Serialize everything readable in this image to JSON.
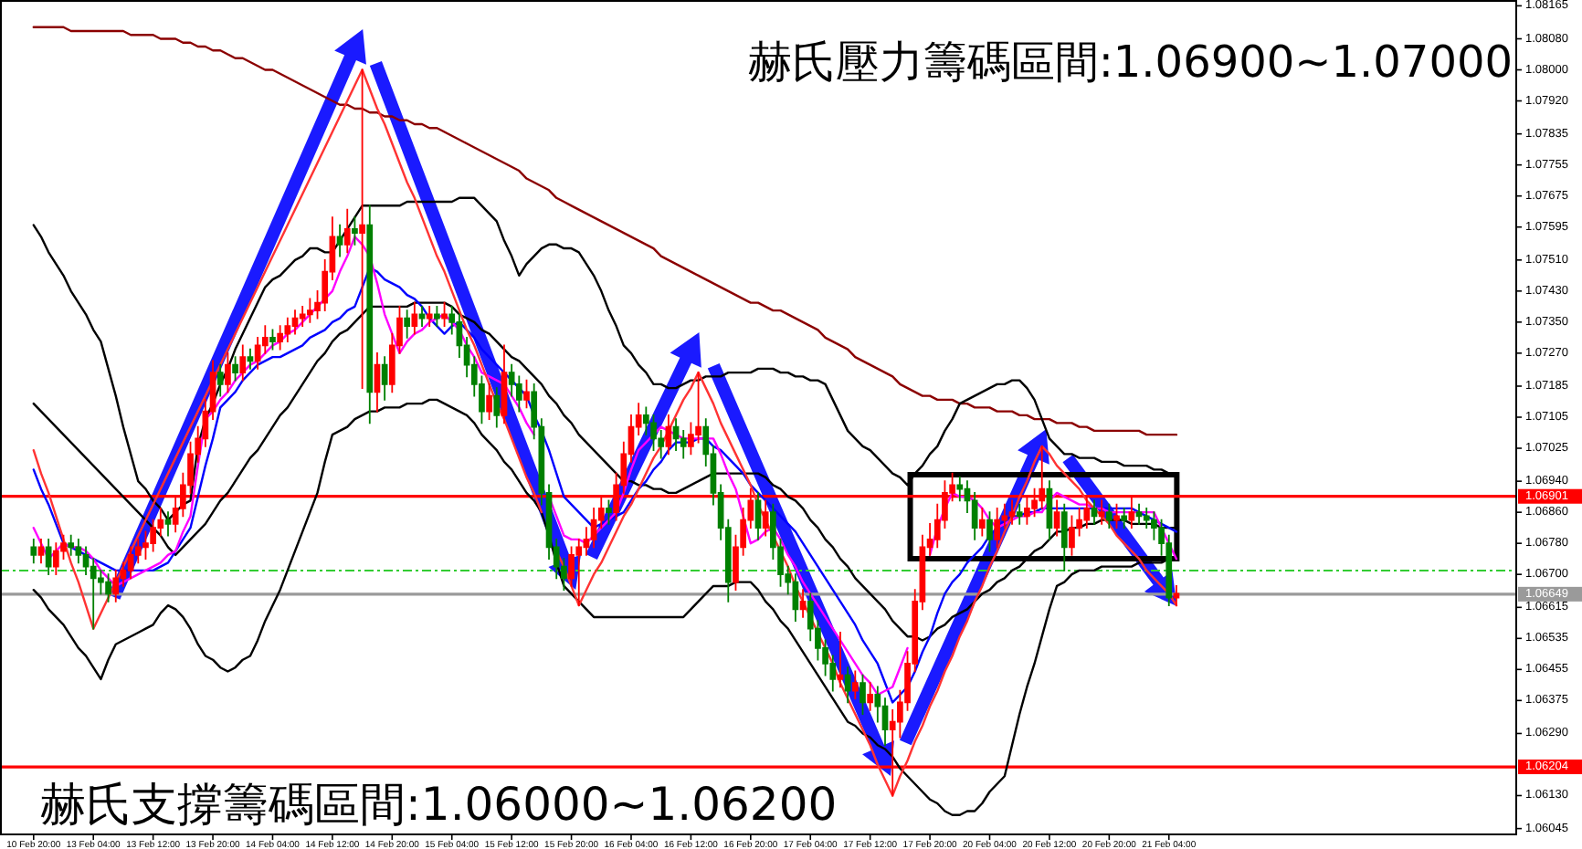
{
  "chart_data": {
    "type": "candlestick",
    "categories": [
      "10 Feb 20:00",
      null,
      null,
      null,
      null,
      null,
      null,
      null,
      "13 Feb 04:00",
      null,
      null,
      null,
      null,
      null,
      null,
      null,
      "13 Feb 12:00",
      null,
      null,
      null,
      null,
      null,
      null,
      null,
      "13 Feb 20:00",
      null,
      null,
      null,
      null,
      null,
      null,
      null,
      "14 Feb 04:00",
      null,
      null,
      null,
      null,
      null,
      null,
      null,
      "14 Feb 12:00",
      null,
      null,
      null,
      null,
      null,
      null,
      null,
      "14 Feb 20:00",
      null,
      null,
      null,
      null,
      null,
      null,
      null,
      "15 Feb 04:00",
      null,
      null,
      null,
      null,
      null,
      null,
      null,
      "15 Feb 12:00",
      null,
      null,
      null,
      null,
      null,
      null,
      null,
      "15 Feb 20:00",
      null,
      null,
      null,
      null,
      null,
      null,
      null,
      "16 Feb 04:00",
      null,
      null,
      null,
      null,
      null,
      null,
      null,
      "16 Feb 12:00",
      null,
      null,
      null,
      null,
      null,
      null,
      null,
      "16 Feb 20:00",
      null,
      null,
      null,
      null,
      null,
      null,
      null,
      "17 Feb 04:00",
      null,
      null,
      null,
      null,
      null,
      null,
      null,
      "17 Feb 12:00",
      null,
      null,
      null,
      null,
      null,
      null,
      null,
      "17 Feb 20:00",
      null,
      null,
      null,
      null,
      null,
      null,
      null,
      "20 Feb 04:00",
      null,
      null,
      null,
      null,
      null,
      null,
      null,
      "20 Feb 12:00",
      null,
      null,
      null,
      null,
      null,
      null,
      null,
      "20 Feb 20:00",
      null,
      null,
      null,
      null,
      null,
      null,
      null,
      "21 Feb 04:00",
      null
    ],
    "ylim": [
      1.0603,
      1.0818
    ],
    "yticks": [
      1.06045,
      {
        "value": 1.0613,
        "label": "1.06130"
      },
      {
        "value": 1.0629,
        "label": "1.06290"
      },
      1.06375,
      1.06455,
      1.06535,
      1.06615,
      {
        "value": 1.067,
        "label": "1.06700"
      },
      {
        "value": 1.0678,
        "label": "1.06780"
      },
      {
        "value": 1.0686,
        "label": "1.06860"
      },
      {
        "value": 1.0694,
        "label": "1.06940"
      },
      1.07025,
      1.07105,
      1.07185,
      {
        "value": 1.0727,
        "label": "1.07270"
      },
      {
        "value": 1.0735,
        "label": "1.07350"
      },
      {
        "value": 1.0743,
        "label": "1.07430"
      },
      {
        "value": 1.0751,
        "label": "1.07510"
      },
      1.07595,
      1.07675,
      1.07755,
      1.07835,
      {
        "value": 1.0792,
        "label": "1.07920"
      },
      {
        "value": 1.08,
        "label": "1.08000"
      },
      {
        "value": 1.0808,
        "label": "1.08080"
      },
      1.08165
    ],
    "ohlc": [
      [
        1.0677,
        1.0679,
        1.0673,
        1.0675
      ],
      [
        1.0675,
        1.0679,
        1.0673,
        1.0677
      ],
      [
        1.0677,
        1.0679,
        1.067,
        1.0672
      ],
      [
        1.0672,
        1.0678,
        1.067,
        1.0676
      ],
      [
        1.0676,
        1.068,
        1.0674,
        1.0678
      ],
      [
        1.0678,
        1.068,
        1.0675,
        1.0677
      ],
      [
        1.0677,
        1.0679,
        1.0673,
        1.0675
      ],
      [
        1.0675,
        1.0677,
        1.067,
        1.0672
      ],
      [
        1.0672,
        1.0674,
        1.0656,
        1.0669
      ],
      [
        1.0669,
        1.0671,
        1.0665,
        1.0668
      ],
      [
        1.0668,
        1.067,
        1.0663,
        1.0665
      ],
      [
        1.0665,
        1.0671,
        1.0663,
        1.0669
      ],
      [
        1.0669,
        1.0673,
        1.0667,
        1.0671
      ],
      [
        1.0671,
        1.0677,
        1.0669,
        1.0675
      ],
      [
        1.0675,
        1.0679,
        1.0673,
        1.0677
      ],
      [
        1.0677,
        1.0681,
        1.0674,
        1.0678
      ],
      [
        1.0678,
        1.0684,
        1.0676,
        1.0682
      ],
      [
        1.0682,
        1.0687,
        1.068,
        1.0684
      ],
      [
        1.0684,
        1.0686,
        1.068,
        1.0683
      ],
      [
        1.0683,
        1.069,
        1.0681,
        1.0687
      ],
      [
        1.0687,
        1.0696,
        1.0685,
        1.0693
      ],
      [
        1.0693,
        1.0704,
        1.0691,
        1.0701
      ],
      [
        1.0701,
        1.0708,
        1.0699,
        1.0705
      ],
      [
        1.0705,
        1.0715,
        1.0703,
        1.0712
      ],
      [
        1.0712,
        1.0725,
        1.071,
        1.0722
      ],
      [
        1.0722,
        1.0724,
        1.0716,
        1.0719
      ],
      [
        1.0719,
        1.0727,
        1.0717,
        1.0724
      ],
      [
        1.0724,
        1.0726,
        1.072,
        1.0722
      ],
      [
        1.0722,
        1.0729,
        1.072,
        1.0726
      ],
      [
        1.0726,
        1.0728,
        1.0723,
        1.0725
      ],
      [
        1.0725,
        1.0731,
        1.0723,
        1.0729
      ],
      [
        1.0729,
        1.0734,
        1.0727,
        1.0731
      ],
      [
        1.0731,
        1.0733,
        1.0728,
        1.073
      ],
      [
        1.073,
        1.0734,
        1.0728,
        1.0732
      ],
      [
        1.0732,
        1.0736,
        1.073,
        1.0734
      ],
      [
        1.0734,
        1.0738,
        1.0732,
        1.0736
      ],
      [
        1.0736,
        1.0739,
        1.0734,
        1.0737
      ],
      [
        1.0737,
        1.0741,
        1.0735,
        1.0738
      ],
      [
        1.0738,
        1.0743,
        1.0736,
        1.074
      ],
      [
        1.074,
        1.0751,
        1.0738,
        1.0748
      ],
      [
        1.0748,
        1.0762,
        1.0746,
        1.0757
      ],
      [
        1.0757,
        1.076,
        1.0752,
        1.0755
      ],
      [
        1.0755,
        1.0764,
        1.0753,
        1.0759
      ],
      [
        1.0759,
        1.0762,
        1.0755,
        1.0758
      ],
      [
        1.0758,
        1.08,
        1.0718,
        1.076
      ],
      [
        1.076,
        1.0765,
        1.0709,
        1.0717
      ],
      [
        1.0717,
        1.0727,
        1.0712,
        1.0724
      ],
      [
        1.0724,
        1.0726,
        1.0715,
        1.0719
      ],
      [
        1.0719,
        1.0732,
        1.0717,
        1.0729
      ],
      [
        1.0729,
        1.0739,
        1.0727,
        1.0736
      ],
      [
        1.0736,
        1.0738,
        1.0731,
        1.0734
      ],
      [
        1.0734,
        1.074,
        1.0732,
        1.0737
      ],
      [
        1.0737,
        1.0739,
        1.0734,
        1.0736
      ],
      [
        1.0736,
        1.0739,
        1.0734,
        1.0737
      ],
      [
        1.0737,
        1.0739,
        1.0734,
        1.0736
      ],
      [
        1.0736,
        1.074,
        1.0734,
        1.0737
      ],
      [
        1.0737,
        1.0739,
        1.0732,
        1.0735
      ],
      [
        1.0735,
        1.0737,
        1.0726,
        1.0729
      ],
      [
        1.0729,
        1.0731,
        1.0721,
        1.0724
      ],
      [
        1.0724,
        1.0726,
        1.0716,
        1.0719
      ],
      [
        1.0719,
        1.0721,
        1.0709,
        1.0712
      ],
      [
        1.0712,
        1.0719,
        1.071,
        1.0716
      ],
      [
        1.0716,
        1.0718,
        1.0708,
        1.0711
      ],
      [
        1.0711,
        1.0729,
        1.0709,
        1.0722
      ],
      [
        1.0722,
        1.0724,
        1.0716,
        1.0719
      ],
      [
        1.0719,
        1.0721,
        1.0712,
        1.0715
      ],
      [
        1.0715,
        1.072,
        1.0713,
        1.0717
      ],
      [
        1.0717,
        1.0719,
        1.0705,
        1.0708
      ],
      [
        1.0708,
        1.071,
        1.0688,
        1.0691
      ],
      [
        1.0691,
        1.0693,
        1.0674,
        1.0677
      ],
      [
        1.0677,
        1.0679,
        1.0669,
        1.0672
      ],
      [
        1.0672,
        1.0674,
        1.0666,
        1.0669
      ],
      [
        1.0669,
        1.0677,
        1.0667,
        1.0675
      ],
      [
        1.0675,
        1.0679,
        1.0662,
        1.0677
      ],
      [
        1.0677,
        1.0682,
        1.0675,
        1.0679
      ],
      [
        1.0679,
        1.0687,
        1.0677,
        1.0684
      ],
      [
        1.0684,
        1.069,
        1.0682,
        1.0687
      ],
      [
        1.0687,
        1.0689,
        1.0683,
        1.0686
      ],
      [
        1.0686,
        1.0696,
        1.0684,
        1.0693
      ],
      [
        1.0693,
        1.0704,
        1.0691,
        1.0701
      ],
      [
        1.0701,
        1.0711,
        1.0699,
        1.0708
      ],
      [
        1.0708,
        1.0714,
        1.0706,
        1.0711
      ],
      [
        1.0711,
        1.0713,
        1.0706,
        1.0709
      ],
      [
        1.0709,
        1.0711,
        1.0702,
        1.0705
      ],
      [
        1.0705,
        1.0707,
        1.07,
        1.0703
      ],
      [
        1.0703,
        1.0711,
        1.0701,
        1.0708
      ],
      [
        1.0708,
        1.071,
        1.0702,
        1.0705
      ],
      [
        1.0705,
        1.0707,
        1.07,
        1.0703
      ],
      [
        1.0703,
        1.0709,
        1.0701,
        1.0706
      ],
      [
        1.0706,
        1.0722,
        1.0704,
        1.0708
      ],
      [
        1.0708,
        1.071,
        1.0698,
        1.0701
      ],
      [
        1.0701,
        1.0703,
        1.0688,
        1.0691
      ],
      [
        1.0691,
        1.0693,
        1.0679,
        1.0682
      ],
      [
        1.0682,
        1.0684,
        1.0663,
        1.0668
      ],
      [
        1.0668,
        1.068,
        1.0666,
        1.0677
      ],
      [
        1.0677,
        1.0687,
        1.0675,
        1.0684
      ],
      [
        1.0684,
        1.0692,
        1.0682,
        1.0689
      ],
      [
        1.0689,
        1.0691,
        1.0679,
        1.0682
      ],
      [
        1.0682,
        1.0689,
        1.068,
        1.0686
      ],
      [
        1.0686,
        1.0688,
        1.0674,
        1.0677
      ],
      [
        1.0677,
        1.0679,
        1.0667,
        1.067
      ],
      [
        1.067,
        1.0672,
        1.0665,
        1.0668
      ],
      [
        1.0668,
        1.067,
        1.0658,
        1.0661
      ],
      [
        1.0661,
        1.0666,
        1.0659,
        1.0663
      ],
      [
        1.0663,
        1.0665,
        1.0653,
        1.0656
      ],
      [
        1.0656,
        1.0658,
        1.0648,
        1.0651
      ],
      [
        1.0651,
        1.0653,
        1.0644,
        1.0647
      ],
      [
        1.0647,
        1.0649,
        1.064,
        1.0643
      ],
      [
        1.0643,
        1.0655,
        1.0641,
        1.0644
      ],
      [
        1.0644,
        1.0646,
        1.0637,
        1.064
      ],
      [
        1.064,
        1.0645,
        1.0638,
        1.0642
      ],
      [
        1.0642,
        1.0644,
        1.0634,
        1.0637
      ],
      [
        1.0637,
        1.0642,
        1.0635,
        1.0639
      ],
      [
        1.0639,
        1.0641,
        1.0632,
        1.0636
      ],
      [
        1.0636,
        1.0638,
        1.0626,
        1.063
      ],
      [
        1.063,
        1.0635,
        1.0613,
        1.0632
      ],
      [
        1.0632,
        1.064,
        1.0628,
        1.0637
      ],
      [
        1.0637,
        1.065,
        1.0635,
        1.0647
      ],
      [
        1.0647,
        1.0666,
        1.0645,
        1.0663
      ],
      [
        1.0663,
        1.068,
        1.0661,
        1.0677
      ],
      [
        1.0677,
        1.0683,
        1.0675,
        1.0679
      ],
      [
        1.0679,
        1.0688,
        1.0677,
        1.0684
      ],
      [
        1.0684,
        1.0694,
        1.0682,
        1.0691
      ],
      [
        1.0691,
        1.0696,
        1.0689,
        1.0693
      ],
      [
        1.0693,
        1.0695,
        1.0689,
        1.0692
      ],
      [
        1.0692,
        1.0694,
        1.0686,
        1.0689
      ],
      [
        1.0689,
        1.0691,
        1.0679,
        1.0682
      ],
      [
        1.0682,
        1.0687,
        1.068,
        1.0684
      ],
      [
        1.0684,
        1.0686,
        1.0676,
        1.0679
      ],
      [
        1.0679,
        1.0687,
        1.0677,
        1.0684
      ],
      [
        1.0684,
        1.0688,
        1.0682,
        1.0685
      ],
      [
        1.0685,
        1.0689,
        1.0683,
        1.0686
      ],
      [
        1.0686,
        1.0688,
        1.0683,
        1.0685
      ],
      [
        1.0685,
        1.069,
        1.0683,
        1.0687
      ],
      [
        1.0687,
        1.0692,
        1.0685,
        1.0689
      ],
      [
        1.0689,
        1.0703,
        1.0687,
        1.0692
      ],
      [
        1.0692,
        1.0694,
        1.0679,
        1.0682
      ],
      [
        1.0682,
        1.0689,
        1.068,
        1.0686
      ],
      [
        1.0686,
        1.0688,
        1.0671,
        1.0677
      ],
      [
        1.0677,
        1.0685,
        1.0675,
        1.0682
      ],
      [
        1.0682,
        1.0687,
        1.068,
        1.0684
      ],
      [
        1.0684,
        1.069,
        1.0682,
        1.0687
      ],
      [
        1.0687,
        1.0689,
        1.0683,
        1.0685
      ],
      [
        1.0685,
        1.0689,
        1.0683,
        1.0686
      ],
      [
        1.0686,
        1.0688,
        1.0682,
        1.0684
      ],
      [
        1.0684,
        1.0688,
        1.0682,
        1.0685
      ],
      [
        1.0685,
        1.0687,
        1.0682,
        1.0684
      ],
      [
        1.0684,
        1.069,
        1.0682,
        1.0686
      ],
      [
        1.0686,
        1.0688,
        1.0683,
        1.0685
      ],
      [
        1.0685,
        1.0687,
        1.0682,
        1.0684
      ],
      [
        1.0684,
        1.0686,
        1.0679,
        1.0682
      ],
      [
        1.0682,
        1.0684,
        1.0675,
        1.0678
      ],
      [
        1.0678,
        1.068,
        1.0662,
        1.0664
      ],
      [
        1.0664,
        1.0667,
        1.0662,
        1.0665
      ]
    ],
    "colors": [
      "#008000",
      "#ff0000",
      "#008000",
      "#ff0000",
      "#ff0000",
      "#008000",
      "#008000",
      "#008000",
      "#008000",
      "#008000",
      "#008000",
      "#ff0000",
      "#ff0000",
      "#ff0000",
      "#ff0000",
      "#ff0000",
      "#ff0000",
      "#ff0000",
      "#008000",
      "#ff0000",
      "#ff0000",
      "#ff0000",
      "#ff0000",
      "#ff0000",
      "#ff0000",
      "#008000",
      "#ff0000",
      "#008000",
      "#ff0000",
      "#008000",
      "#ff0000",
      "#ff0000",
      "#008000",
      "#ff0000",
      "#ff0000",
      "#ff0000",
      "#ff0000",
      "#ff0000",
      "#ff0000",
      "#ff0000",
      "#ff0000",
      "#008000",
      "#ff0000",
      "#008000",
      "#ff0000",
      "#008000",
      "#ff0000",
      "#008000",
      "#ff0000",
      "#ff0000",
      "#008000",
      "#ff0000",
      "#008000",
      "#ff0000",
      "#008000",
      "#ff0000",
      "#008000",
      "#008000",
      "#008000",
      "#008000",
      "#008000",
      "#ff0000",
      "#008000",
      "#ff0000",
      "#008000",
      "#008000",
      "#ff0000",
      "#008000",
      "#008000",
      "#008000",
      "#008000",
      "#008000",
      "#ff0000",
      "#ff0000",
      "#ff0000",
      "#ff0000",
      "#ff0000",
      "#008000",
      "#ff0000",
      "#ff0000",
      "#ff0000",
      "#ff0000",
      "#008000",
      "#008000",
      "#008000",
      "#ff0000",
      "#008000",
      "#008000",
      "#ff0000",
      "#ff0000",
      "#008000",
      "#008000",
      "#008000",
      "#008000",
      "#ff0000",
      "#ff0000",
      "#ff0000",
      "#008000",
      "#ff0000",
      "#008000",
      "#008000",
      "#008000",
      "#008000",
      "#ff0000",
      "#008000",
      "#008000",
      "#008000",
      "#008000",
      "#ff0000",
      "#008000",
      "#ff0000",
      "#008000",
      "#ff0000",
      "#008000",
      "#008000",
      "#ff0000",
      "#ff0000",
      "#ff0000",
      "#ff0000",
      "#ff0000",
      "#ff0000",
      "#ff0000",
      "#ff0000",
      "#ff0000",
      "#008000",
      "#008000",
      "#008000",
      "#ff0000",
      "#008000",
      "#ff0000",
      "#ff0000",
      "#ff0000",
      "#008000",
      "#ff0000",
      "#ff0000",
      "#ff0000",
      "#008000",
      "#ff0000",
      "#008000",
      "#ff0000",
      "#ff0000",
      "#ff0000",
      "#008000",
      "#ff0000",
      "#008000",
      "#ff0000",
      "#008000",
      "#ff0000",
      "#008000",
      "#008000",
      "#008000",
      "#008000",
      "#008000",
      "#ff0000"
    ],
    "series": [
      {
        "type": "line",
        "color": "#8b0000",
        "values": [
          1.0811,
          1.0811,
          1.0811,
          1.0811,
          1.0811,
          1.081,
          1.081,
          1.081,
          1.081,
          1.081,
          1.081,
          1.081,
          1.081,
          1.0809,
          1.0809,
          1.0809,
          1.0809,
          1.0808,
          1.0808,
          1.0808,
          1.0807,
          1.0807,
          1.0806,
          1.0806,
          1.0805,
          1.0805,
          1.0804,
          1.0803,
          1.0803,
          1.0802,
          1.0801,
          1.08,
          1.08,
          1.0799,
          1.0798,
          1.0797,
          1.0796,
          1.0795,
          1.0794,
          1.0793,
          1.0792,
          1.0791,
          1.0791,
          1.079,
          1.079,
          1.0789,
          1.0789,
          1.0788,
          1.0788,
          1.0787,
          1.0787,
          1.0786,
          1.0786,
          1.0785,
          1.0785,
          1.0784,
          1.0783,
          1.0782,
          1.0781,
          1.078,
          1.0779,
          1.0778,
          1.0777,
          1.0776,
          1.0775,
          1.0774,
          1.0772,
          1.0771,
          1.077,
          1.0769,
          1.0767,
          1.0766,
          1.0765,
          1.0764,
          1.0763,
          1.0762,
          1.0761,
          1.076,
          1.0759,
          1.0758,
          1.0757,
          1.0756,
          1.0755,
          1.0754,
          1.0752,
          1.0751,
          1.075,
          1.0749,
          1.0748,
          1.0747,
          1.0746,
          1.0745,
          1.0744,
          1.0743,
          1.0742,
          1.0741,
          1.074,
          1.074,
          1.0739,
          1.0738,
          1.0738,
          1.0737,
          1.0736,
          1.0735,
          1.0734,
          1.0733,
          1.0731,
          1.073,
          1.0729,
          1.0728,
          1.0726,
          1.0725,
          1.0724,
          1.0723,
          1.0722,
          1.0721,
          1.0719,
          1.0718,
          1.0717,
          1.0716,
          1.0716,
          1.0715,
          1.0715,
          1.0715,
          1.0714,
          1.0714,
          1.0713,
          1.0713,
          1.0713,
          1.0712,
          1.0712,
          1.0712,
          1.0711,
          1.0711,
          1.071,
          1.071,
          1.071,
          1.0709,
          1.0709,
          1.0709,
          1.0708,
          1.0708,
          1.0707,
          1.0707,
          1.0707,
          1.0707,
          1.0707,
          1.0707,
          1.0707,
          1.0706,
          1.0706,
          1.0706,
          1.0706,
          1.0706
        ]
      },
      {
        "type": "line",
        "color": "#000000",
        "values": [
          1.076,
          1.0757,
          1.0753,
          1.075,
          1.0747,
          1.0743,
          1.074,
          1.0737,
          1.0733,
          1.073,
          1.0723,
          1.0716,
          1.0708,
          1.0701,
          1.0694,
          1.0692,
          1.0689,
          1.0687,
          1.0684,
          1.0686,
          1.0688,
          1.0689,
          1.0703,
          1.071,
          1.0714,
          1.0719,
          1.0723,
          1.0728,
          1.0732,
          1.0736,
          1.074,
          1.0744,
          1.0746,
          1.0747,
          1.0749,
          1.0751,
          1.0752,
          1.0754,
          1.0754,
          1.0753,
          1.0753,
          1.0756,
          1.0759,
          1.0762,
          1.0765,
          1.0765,
          1.0765,
          1.0765,
          1.0765,
          1.0765,
          1.0766,
          1.0766,
          1.0766,
          1.0766,
          1.0766,
          1.0766,
          1.0766,
          1.0767,
          1.0767,
          1.0767,
          1.0765,
          1.0763,
          1.0761,
          1.0756,
          1.0752,
          1.0747,
          1.075,
          1.0752,
          1.0754,
          1.0755,
          1.0755,
          1.0754,
          1.0754,
          1.0753,
          1.075,
          1.0747,
          1.0743,
          1.0738,
          1.0734,
          1.0729,
          1.0727,
          1.0724,
          1.0722,
          1.0719,
          1.0719,
          1.0718,
          1.0718,
          1.0719,
          1.072,
          1.072,
          1.0721,
          1.0721,
          1.0721,
          1.0722,
          1.0722,
          1.0722,
          1.0722,
          1.0723,
          1.0723,
          1.0723,
          1.0722,
          1.0722,
          1.0721,
          1.0721,
          1.072,
          1.072,
          1.0719,
          1.0715,
          1.0711,
          1.0707,
          1.0705,
          1.0703,
          1.0702,
          1.07,
          1.0698,
          1.0696,
          1.0695,
          1.0693,
          1.0696,
          1.0698,
          1.0701,
          1.0703,
          1.0707,
          1.071,
          1.0714,
          1.0715,
          1.0716,
          1.0717,
          1.0718,
          1.0719,
          1.0719,
          1.072,
          1.072,
          1.0718,
          1.0715,
          1.071,
          1.0705,
          1.0703,
          1.0701,
          1.0701,
          1.07,
          1.07,
          1.07,
          1.0699,
          1.0699,
          1.0699,
          1.0698,
          1.0698,
          1.0698,
          1.0698,
          1.0697,
          1.0697,
          1.0696,
          1.0696
        ]
      },
      {
        "type": "line",
        "color": "#000000",
        "values": [
          1.0714,
          1.0712,
          1.071,
          1.0708,
          1.0706,
          1.0704,
          1.0702,
          1.07,
          1.0698,
          1.0696,
          1.0694,
          1.0692,
          1.069,
          1.0688,
          1.0686,
          1.0684,
          1.0682,
          1.068,
          1.0677,
          1.0675,
          1.0677,
          1.0679,
          1.0681,
          1.0683,
          1.0686,
          1.0689,
          1.0691,
          1.0694,
          1.0697,
          1.07,
          1.0702,
          1.0705,
          1.0708,
          1.0711,
          1.0713,
          1.0716,
          1.0719,
          1.0722,
          1.0725,
          1.0727,
          1.073,
          1.0732,
          1.0733,
          1.0735,
          1.0737,
          1.0739,
          1.0739,
          1.0739,
          1.0739,
          1.0739,
          1.0739,
          1.074,
          1.074,
          1.074,
          1.074,
          1.074,
          1.0739,
          1.0737,
          1.0736,
          1.0735,
          1.0733,
          1.0732,
          1.073,
          1.0728,
          1.0726,
          1.0725,
          1.0723,
          1.0721,
          1.0719,
          1.0716,
          1.0714,
          1.0711,
          1.0709,
          1.0706,
          1.0704,
          1.0702,
          1.07,
          1.0698,
          1.0696,
          1.0694,
          1.0694,
          1.0693,
          1.0693,
          1.0692,
          1.0692,
          1.0691,
          1.0691,
          1.0692,
          1.0693,
          1.0694,
          1.0695,
          1.0696,
          1.0696,
          1.0696,
          1.0696,
          1.0696,
          1.0696,
          1.0696,
          1.0695,
          1.0693,
          1.0692,
          1.069,
          1.0689,
          1.0687,
          1.0684,
          1.0682,
          1.0679,
          1.0677,
          1.0674,
          1.0672,
          1.0669,
          1.0667,
          1.0665,
          1.0663,
          1.0661,
          1.0658,
          1.0656,
          1.0654,
          1.0654,
          1.0653,
          1.0654,
          1.0656,
          1.0657,
          1.0659,
          1.066,
          1.0661,
          1.0663,
          1.0665,
          1.0666,
          1.0668,
          1.0669,
          1.0671,
          1.0672,
          1.0674,
          1.0676,
          1.0677,
          1.0679,
          1.0681,
          1.0681,
          1.0682,
          1.0682,
          1.0683,
          1.0683,
          1.0684,
          1.0684,
          1.0684,
          1.0684,
          1.0683,
          1.0683,
          1.0683,
          1.0683,
          1.0682,
          1.0682,
          1.0682
        ]
      },
      {
        "type": "line",
        "color": "#000000",
        "values": [
          1.0666,
          1.0664,
          1.0661,
          1.0659,
          1.0657,
          1.0654,
          1.0651,
          1.0649,
          1.0646,
          1.0643,
          1.0648,
          1.0652,
          1.0653,
          1.0654,
          1.0655,
          1.0656,
          1.0657,
          1.066,
          1.0662,
          1.0661,
          1.0659,
          1.0656,
          1.0652,
          1.0649,
          1.0648,
          1.0646,
          1.0645,
          1.0646,
          1.0648,
          1.0649,
          1.0653,
          1.0658,
          1.0662,
          1.0666,
          1.0671,
          1.0676,
          1.0681,
          1.0686,
          1.0691,
          1.0699,
          1.0706,
          1.0707,
          1.0708,
          1.071,
          1.0711,
          1.0712,
          1.0712,
          1.0713,
          1.0713,
          1.0713,
          1.0714,
          1.0714,
          1.0714,
          1.0715,
          1.0715,
          1.0714,
          1.0713,
          1.0712,
          1.0711,
          1.0709,
          1.0706,
          1.0704,
          1.0702,
          1.0699,
          1.0697,
          1.0694,
          1.0691,
          1.0689,
          1.0686,
          1.068,
          1.0673,
          1.0667,
          1.0665,
          1.0663,
          1.0661,
          1.0659,
          1.0659,
          1.0659,
          1.0659,
          1.0659,
          1.0659,
          1.0659,
          1.0659,
          1.0659,
          1.0659,
          1.0659,
          1.0659,
          1.0659,
          1.0661,
          1.0663,
          1.0665,
          1.0667,
          1.0667,
          1.0667,
          1.0668,
          1.0668,
          1.0668,
          1.0666,
          1.0663,
          1.0661,
          1.0658,
          1.0656,
          1.0653,
          1.065,
          1.0647,
          1.0644,
          1.0641,
          1.0638,
          1.0635,
          1.0632,
          1.0631,
          1.0629,
          1.0628,
          1.0626,
          1.0625,
          1.0623,
          1.062,
          1.0618,
          1.0616,
          1.0614,
          1.0612,
          1.0611,
          1.0609,
          1.0608,
          1.0608,
          1.0609,
          1.0609,
          1.0611,
          1.0614,
          1.0616,
          1.0618,
          1.0626,
          1.0634,
          1.0641,
          1.0647,
          1.0654,
          1.0661,
          1.0667,
          1.0668,
          1.067,
          1.0671,
          1.0671,
          1.0671,
          1.0672,
          1.0672,
          1.0672,
          1.0672,
          1.0672,
          1.0673,
          1.0673,
          1.0673,
          1.0673,
          1.0674,
          1.0674
        ]
      },
      {
        "type": "line",
        "color": "#0000ff",
        "values": [
          1.0697,
          1.0692,
          1.0688,
          1.0683,
          1.0678,
          1.0677,
          1.0676,
          1.0675,
          1.0674,
          1.0673,
          1.0672,
          1.0671,
          1.0671,
          1.0671,
          1.0671,
          1.0671,
          1.0671,
          1.0672,
          1.0673,
          1.0676,
          1.0679,
          1.0682,
          1.069,
          1.0698,
          1.0705,
          1.0713,
          1.0715,
          1.0717,
          1.072,
          1.0722,
          1.0724,
          1.0725,
          1.0726,
          1.0726,
          1.0727,
          1.0728,
          1.0729,
          1.0731,
          1.0732,
          1.0733,
          1.0735,
          1.0736,
          1.0738,
          1.0739,
          1.0744,
          1.0749,
          1.0748,
          1.0746,
          1.0745,
          1.0744,
          1.0742,
          1.0741,
          1.0739,
          1.0736,
          1.0734,
          1.0732,
          1.0734,
          1.0735,
          1.0733,
          1.0731,
          1.0728,
          1.0726,
          1.0724,
          1.0722,
          1.072,
          1.0718,
          1.0716,
          1.0711,
          1.0707,
          1.0702,
          1.0696,
          1.069,
          1.0688,
          1.0686,
          1.0684,
          1.0682,
          1.0683,
          1.0684,
          1.0685,
          1.0686,
          1.0689,
          1.0692,
          1.0694,
          1.0697,
          1.0699,
          1.0702,
          1.0704,
          1.0704,
          1.0704,
          1.0705,
          1.0705,
          1.0703,
          1.0702,
          1.07,
          1.0698,
          1.0696,
          1.0693,
          1.0691,
          1.0689,
          1.0687,
          1.0685,
          1.0683,
          1.0681,
          1.0678,
          1.0675,
          1.0672,
          1.0669,
          1.0666,
          1.0663,
          1.066,
          1.0657,
          1.0653,
          1.065,
          1.0647,
          1.0642,
          1.0637,
          1.0639,
          1.0641,
          1.0645,
          1.065,
          1.0654,
          1.066,
          1.0665,
          1.0668,
          1.067,
          1.0673,
          1.0675,
          1.0677,
          1.068,
          1.0682,
          1.0684,
          1.0685,
          1.0685,
          1.0686,
          1.0686,
          1.0687,
          1.0687,
          1.0687,
          1.0687,
          1.0687,
          1.0687,
          1.0687,
          1.0687,
          1.0687,
          1.0687,
          1.0687,
          1.0687,
          1.0687,
          1.0686,
          1.0685,
          1.0684,
          1.0683,
          1.0682,
          1.0681
        ]
      },
      {
        "type": "line",
        "color": "#ff00ff",
        "values": [
          1.0682,
          1.0678,
          1.0674,
          1.0676,
          1.0678,
          1.0677,
          1.0677,
          1.0676,
          1.0674,
          1.0671,
          1.0669,
          1.0667,
          1.0668,
          1.0669,
          1.067,
          1.0671,
          1.0672,
          1.0673,
          1.0675,
          1.0676,
          1.0681,
          1.0685,
          1.0698,
          1.071,
          1.0712,
          1.0715,
          1.0717,
          1.072,
          1.0722,
          1.0724,
          1.0725,
          1.0727,
          1.0729,
          1.073,
          1.0732,
          1.0733,
          1.0735,
          1.0737,
          1.0739,
          1.0741,
          1.0743,
          1.0748,
          1.0752,
          1.0757,
          1.0755,
          1.0752,
          1.0745,
          1.0737,
          1.0732,
          1.0727,
          1.073,
          1.0732,
          1.0733,
          1.0735,
          1.0736,
          1.0737,
          1.0735,
          1.0733,
          1.0729,
          1.0726,
          1.0722,
          1.0721,
          1.072,
          1.0719,
          1.0716,
          1.0713,
          1.0709,
          1.0706,
          null,
          1.069,
          1.0685,
          1.068,
          1.0679,
          1.0679,
          1.0678,
          1.068,
          1.0682,
          1.0684,
          1.0686,
          1.0691,
          1.0697,
          1.0702,
          1.0704,
          1.0706,
          1.0708,
          1.0707,
          1.0706,
          1.0705,
          1.0705,
          1.0705,
          1.0705,
          1.0705,
          1.0701,
          1.0696,
          1.0692,
          1.0685,
          1.0678,
          1.0679,
          1.0681,
          1.0682,
          1.0679,
          1.0675,
          1.0672,
          1.0668,
          1.0665,
          1.0662,
          1.0659,
          1.0656,
          1.0653,
          1.065,
          1.0647,
          1.0644,
          1.0642,
          1.0639,
          1.064,
          1.0641,
          1.0646,
          1.0651,
          null,
          null,
          1.0675,
          1.0682,
          1.0687,
          1.0691,
          1.069,
          1.069,
          1.0689,
          1.0687,
          1.0684,
          1.0682,
          1.0683,
          1.0684,
          1.0685,
          1.0685,
          1.0686,
          1.0686,
          1.0689,
          1.0691,
          1.069,
          1.0689,
          1.0688,
          1.0688,
          1.0687,
          1.0687,
          1.0686,
          1.0686,
          1.0686,
          1.0686,
          1.0686,
          1.0686,
          1.0686,
          1.0682,
          1.0678,
          1.0674
        ]
      },
      {
        "type": "line",
        "color": "#ff3333",
        "values": [
          1.0702,
          1.0696,
          1.0691,
          1.0685,
          1.0679,
          1.0673,
          1.0668,
          1.0662,
          1.0656,
          1.066,
          1.0664,
          1.0668,
          1.0672,
          1.0676,
          1.068,
          1.0684,
          1.0688,
          1.0692,
          1.0696,
          1.07,
          1.0704,
          1.0708,
          1.0712,
          1.0716,
          1.072,
          1.0724,
          1.0728,
          1.0732,
          1.0736,
          1.074,
          1.0744,
          1.0748,
          1.0752,
          1.0756,
          1.076,
          1.0764,
          1.0768,
          1.0772,
          1.0776,
          1.078,
          1.0784,
          1.0788,
          1.0792,
          1.0796,
          1.08,
          1.0795,
          1.079,
          1.0786,
          1.0781,
          1.0776,
          1.0771,
          1.0767,
          1.0762,
          1.0757,
          1.0752,
          1.0748,
          1.0743,
          1.0738,
          1.0733,
          1.0729,
          1.0724,
          1.0719,
          1.0714,
          1.071,
          1.0705,
          1.07,
          1.0695,
          1.0691,
          1.0686,
          null,
          1.0676,
          1.0672,
          1.0667,
          1.0662,
          1.0666,
          1.067,
          1.0673,
          1.0677,
          1.0681,
          1.0685,
          1.0688,
          1.0692,
          1.0696,
          1.07,
          1.0703,
          1.0707,
          1.0711,
          1.0715,
          1.0718,
          1.0722,
          1.0718,
          1.0714,
          1.0709,
          1.0705,
          1.0701,
          1.0697,
          1.0693,
          1.0688,
          1.0684,
          1.068,
          1.0676,
          1.0672,
          1.0667,
          1.0663,
          1.0659,
          1.0655,
          1.0651,
          1.0647,
          1.0642,
          1.0638,
          1.0634,
          1.063,
          1.0626,
          1.0621,
          1.0617,
          1.0613,
          1.0618,
          1.0622,
          1.0627,
          1.0631,
          1.0636,
          1.064,
          1.0645,
          1.0649,
          1.0654,
          1.0658,
          1.0663,
          1.0667,
          1.0672,
          1.0676,
          1.0681,
          1.0685,
          1.069,
          1.0694,
          1.0699,
          1.0703,
          1.0701,
          1.0698,
          1.0696,
          1.0694,
          1.0692,
          1.0689,
          1.0687,
          1.0685,
          1.0683,
          1.068,
          1.0678,
          1.0676,
          1.0674,
          1.0671,
          1.0669,
          1.0667,
          1.0665,
          1.0662
        ]
      }
    ],
    "ref_lines": [
      {
        "axis": "y",
        "value": 1.06901,
        "label": "1.06901",
        "color": "#ff0000"
      },
      {
        "axis": "y",
        "value": 1.06204,
        "label": "1.06204",
        "color": "#ff0000"
      },
      {
        "axis": "y",
        "value": 1.06649,
        "label": "1.06649",
        "color": "#9a9a9a"
      },
      {
        "axis": "y",
        "value": 1.0671,
        "color": "#33cc33",
        "line_style": "dashed"
      }
    ],
    "annotations": [
      "赫氏壓力籌碼區間:1.06900~1.07000",
      {
        "text": "赫氏支撐籌碼區間:1.06000~1.06200",
        "y": 1.062
      }
    ]
  }
}
